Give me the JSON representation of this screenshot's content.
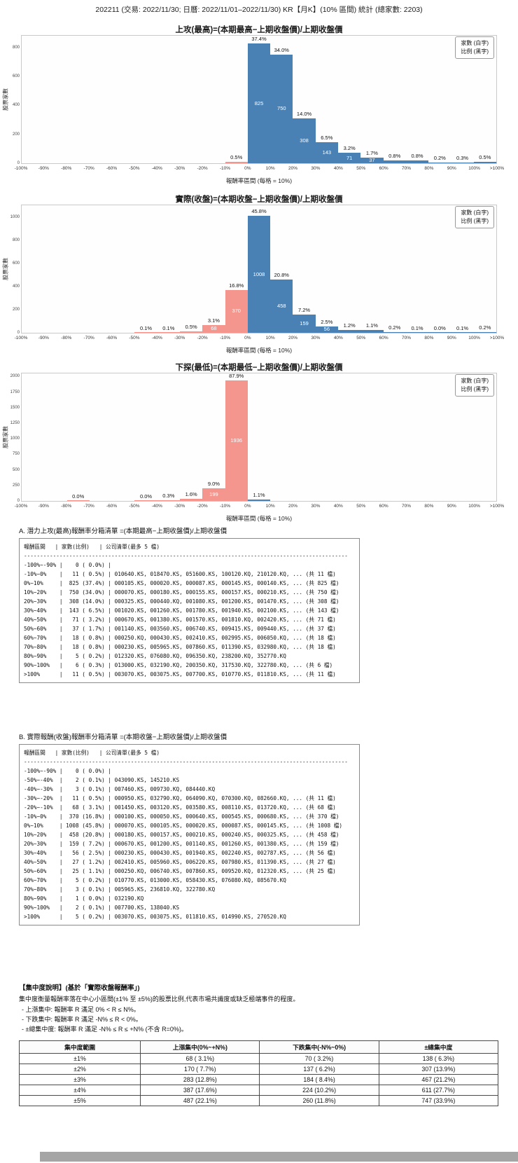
{
  "page_title": "202211 (交易: 2022/11/30; 日曆: 2022/11/01–2022/11/30) KR【月K】(10% 區間) 統計 (總家數: 2203)",
  "axis": {
    "x_label": "報酬率區間 (每格 = 10%)",
    "y_label": "股票家數",
    "x_ticks": [
      "-100%",
      "-90%",
      "-80%",
      "-70%",
      "-60%",
      "-50%",
      "-40%",
      "-30%",
      "-20%",
      "-10%",
      "0%",
      "10%",
      "20%",
      "30%",
      "40%",
      "50%",
      "60%",
      "70%",
      "80%",
      "90%",
      "100%",
      ">100%"
    ]
  },
  "legend": {
    "line1": "家數 (白字)",
    "line2": "比例 (黑字)"
  },
  "colors": {
    "positive_bar": "#4a81b4",
    "negative_bar": "#f5968e",
    "count_text": "#ffffff",
    "pct_text": "#111111"
  },
  "chart_data": [
    {
      "type": "bar",
      "title": "上攻(最高)=(本期最高−上期收盤價)/上期收盤價",
      "xlabel": "報酬率區間 (每格 = 10%)",
      "ylabel": "股票家數",
      "ylim": [
        0,
        880
      ],
      "y_ticks": [
        0,
        200,
        400,
        600,
        800
      ],
      "bins": [
        {
          "i": 9,
          "range": "-10%~0%",
          "count": 11,
          "pct": "0.5%",
          "show_count": false
        },
        {
          "i": 10,
          "range": "0%~10%",
          "count": 825,
          "pct": "37.4%",
          "show_count": true
        },
        {
          "i": 11,
          "range": "10%~20%",
          "count": 750,
          "pct": "34.0%",
          "show_count": true
        },
        {
          "i": 12,
          "range": "20%~30%",
          "count": 308,
          "pct": "14.0%",
          "show_count": true
        },
        {
          "i": 13,
          "range": "30%~40%",
          "count": 143,
          "pct": "6.5%",
          "show_count": true
        },
        {
          "i": 14,
          "range": "40%~50%",
          "count": 71,
          "pct": "3.2%",
          "show_count": true
        },
        {
          "i": 15,
          "range": "50%~60%",
          "count": 37,
          "pct": "1.7%",
          "show_count": true
        },
        {
          "i": 16,
          "range": "60%~70%",
          "count": 18,
          "pct": "0.8%",
          "show_count": false
        },
        {
          "i": 17,
          "range": "70%~80%",
          "count": 18,
          "pct": "0.8%",
          "show_count": false
        },
        {
          "i": 18,
          "range": "80%~90%",
          "count": 5,
          "pct": "0.2%",
          "show_count": false
        },
        {
          "i": 19,
          "range": "90%~100%",
          "count": 6,
          "pct": "0.3%",
          "show_count": false
        },
        {
          "i": 20,
          "range": ">100%",
          "count": 11,
          "pct": "0.5%",
          "show_count": false
        }
      ]
    },
    {
      "type": "bar",
      "title": "實際(收盤)=(本期收盤−上期收盤價)/上期收盤價",
      "xlabel": "報酬率區間 (每格 = 10%)",
      "ylabel": "股票家數",
      "ylim": [
        0,
        1100
      ],
      "y_ticks": [
        0,
        200,
        400,
        600,
        800,
        1000
      ],
      "bins": [
        {
          "i": 5,
          "range": "-50%~-40%",
          "count": 2,
          "pct": "0.1%",
          "show_count": false
        },
        {
          "i": 6,
          "range": "-40%~-30%",
          "count": 3,
          "pct": "0.1%",
          "show_count": false
        },
        {
          "i": 7,
          "range": "-30%~-20%",
          "count": 11,
          "pct": "0.5%",
          "show_count": false
        },
        {
          "i": 8,
          "range": "-20%~-10%",
          "count": 68,
          "pct": "3.1%",
          "show_count": true
        },
        {
          "i": 9,
          "range": "-10%~0%",
          "count": 370,
          "pct": "16.8%",
          "show_count": true
        },
        {
          "i": 10,
          "range": "0%~10%",
          "count": 1008,
          "pct": "45.8%",
          "show_count": true
        },
        {
          "i": 11,
          "range": "10%~20%",
          "count": 458,
          "pct": "20.8%",
          "show_count": true
        },
        {
          "i": 12,
          "range": "20%~30%",
          "count": 159,
          "pct": "7.2%",
          "show_count": true
        },
        {
          "i": 13,
          "range": "30%~40%",
          "count": 56,
          "pct": "2.5%",
          "show_count": true
        },
        {
          "i": 14,
          "range": "40%~50%",
          "count": 27,
          "pct": "1.2%",
          "show_count": false
        },
        {
          "i": 15,
          "range": "50%~60%",
          "count": 25,
          "pct": "1.1%",
          "show_count": false
        },
        {
          "i": 16,
          "range": "60%~70%",
          "count": 5,
          "pct": "0.2%",
          "show_count": false
        },
        {
          "i": 17,
          "range": "70%~80%",
          "count": 3,
          "pct": "0.1%",
          "show_count": false
        },
        {
          "i": 18,
          "range": "80%~90%",
          "count": 1,
          "pct": "0.0%",
          "show_count": false
        },
        {
          "i": 19,
          "range": "90%~100%",
          "count": 2,
          "pct": "0.1%",
          "show_count": false
        },
        {
          "i": 20,
          "range": ">100%",
          "count": 5,
          "pct": "0.2%",
          "show_count": false
        }
      ]
    },
    {
      "type": "bar",
      "title": "下探(最低)=(本期最低−上期收盤價)/上期收盤價",
      "xlabel": "報酬率區間 (每格 = 10%)",
      "ylabel": "股票家數",
      "ylim": [
        0,
        2050
      ],
      "y_ticks": [
        0,
        250,
        500,
        750,
        1000,
        1250,
        1500,
        1750,
        2000
      ],
      "bins": [
        {
          "i": 2,
          "range": "-80%~-70%",
          "count": 1,
          "pct": "0.0%",
          "show_count": false
        },
        {
          "i": 5,
          "range": "-50%~-40%",
          "count": 1,
          "pct": "0.0%",
          "show_count": false
        },
        {
          "i": 6,
          "range": "-40%~-30%",
          "count": 7,
          "pct": "0.3%",
          "show_count": false
        },
        {
          "i": 7,
          "range": "-30%~-20%",
          "count": 35,
          "pct": "1.6%",
          "show_count": false
        },
        {
          "i": 8,
          "range": "-20%~-10%",
          "count": 199,
          "pct": "9.0%",
          "show_count": true
        },
        {
          "i": 9,
          "range": "-10%~0%",
          "count": 1936,
          "pct": "87.9%",
          "show_count": true
        },
        {
          "i": 10,
          "range": "0%~10%",
          "count": 24,
          "pct": "1.1%",
          "show_count": false
        }
      ]
    }
  ],
  "section_a": {
    "title": "A. 潛力上攻(最高)報酬率分箱清單 =(本期最高−上期收盤價)/上期收盤價",
    "header": "報酬區間   | 家數(比例)   | 公司清單(最多 5 檔)",
    "separator": "----------------------------------------------------------------------------------------------------",
    "rows": [
      "-100%~-90% |    0 ( 0.0%) |",
      "-10%~0%    |   11 ( 0.5%) | 010640.KS, 018470.KS, 051600.KS, 100120.KQ, 210120.KQ, ... (共 11 檔)",
      "0%~10%     |  825 (37.4%) | 000105.KS, 000020.KS, 000087.KS, 000145.KS, 000140.KS, ... (共 825 檔)",
      "10%~20%    |  750 (34.0%) | 000070.KS, 000180.KS, 000155.KS, 000157.KS, 000210.KS, ... (共 750 檔)",
      "20%~30%    |  308 (14.0%) | 000325.KS, 000440.KQ, 001080.KS, 001200.KS, 001470.KS, ... (共 308 檔)",
      "30%~40%    |  143 ( 6.5%) | 001020.KS, 001260.KS, 001780.KS, 001940.KS, 002100.KS, ... (共 143 檔)",
      "40%~50%    |   71 ( 3.2%) | 000670.KS, 001380.KS, 001570.KS, 001810.KQ, 002420.KS, ... (共 71 檔)",
      "50%~60%    |   37 ( 1.7%) | 001140.KS, 003560.KS, 006740.KS, 009415.KS, 009440.KS, ... (共 37 檔)",
      "60%~70%    |   18 ( 0.8%) | 000250.KQ, 000430.KS, 002410.KS, 002995.KS, 006050.KQ, ... (共 18 檔)",
      "70%~80%    |   18 ( 0.8%) | 000230.KS, 005965.KS, 007860.KS, 011390.KS, 032980.KQ, ... (共 18 檔)",
      "80%~90%    |    5 ( 0.2%) | 012320.KS, 076080.KQ, 096350.KQ, 238200.KQ, 352770.KQ",
      "90%~100%   |    6 ( 0.3%) | 013000.KS, 032190.KQ, 200350.KQ, 317530.KQ, 322780.KQ, ... (共 6 檔)",
      ">100%      |   11 ( 0.5%) | 003070.KS, 003075.KS, 007700.KS, 010770.KS, 011810.KS, ... (共 11 檔)"
    ]
  },
  "section_b": {
    "title": "B. 實際報酬(收盤)報酬率分箱清單 =(本期收盤−上期收盤價)/上期收盤價",
    "header": "報酬區間   | 家數(比例)   | 公司清單(最多 5 檔)",
    "separator": "----------------------------------------------------------------------------------------------------",
    "rows": [
      "-100%~-90% |    0 ( 0.0%) |",
      "-50%~-40%  |    2 ( 0.1%) | 043090.KS, 145210.KS",
      "-40%~-30%  |    3 ( 0.1%) | 007460.KS, 009730.KQ, 084440.KQ",
      "-30%~-20%  |   11 ( 0.5%) | 000950.KS, 032790.KQ, 064090.KQ, 070300.KQ, 082660.KQ, ... (共 11 檔)",
      "-20%~-10%  |   68 ( 3.1%) | 001450.KS, 003120.KS, 003580.KS, 008110.KS, 013720.KQ, ... (共 68 檔)",
      "-10%~0%    |  370 (16.8%) | 000100.KS, 000050.KS, 000640.KS, 000545.KS, 000680.KS, ... (共 370 檔)",
      "0%~10%     | 1008 (45.8%) | 000070.KS, 000105.KS, 000020.KS, 000087.KS, 000145.KS, ... (共 1008 檔)",
      "10%~20%    |  458 (20.8%) | 000180.KS, 000157.KS, 000210.KS, 000240.KS, 000325.KS, ... (共 458 檔)",
      "20%~30%    |  159 ( 7.2%) | 000670.KS, 001200.KS, 001140.KS, 001260.KS, 001380.KS, ... (共 159 檔)",
      "30%~40%    |   56 ( 2.5%) | 000230.KS, 000430.KS, 001940.KS, 002240.KS, 002787.KS, ... (共 56 檔)",
      "40%~50%    |   27 ( 1.2%) | 002410.KS, 005960.KS, 006220.KS, 007980.KS, 011390.KS, ... (共 27 檔)",
      "50%~60%    |   25 ( 1.1%) | 000250.KQ, 006740.KS, 007860.KS, 009520.KQ, 012320.KS, ... (共 25 檔)",
      "60%~70%    |    5 ( 0.2%) | 010770.KS, 013000.KS, 058430.KS, 076080.KQ, 085670.KQ",
      "70%~80%    |    3 ( 0.1%) | 005965.KS, 236810.KQ, 322780.KQ",
      "80%~90%    |    1 ( 0.0%) | 032190.KQ",
      "90%~100%   |    2 ( 0.1%) | 007700.KS, 138040.KS",
      ">100%      |    5 ( 0.2%) | 003070.KS, 003075.KS, 011810.KS, 014990.KS, 270520.KQ"
    ]
  },
  "concentration": {
    "heading": "【集中度說明】(基於「實際收盤報酬率」)",
    "desc": "集中度衡量報酬率落在中心小區間(±1% 至 ±5%)的股票比例,代表市場共識度或缺乏極端事件的程度。",
    "bullets": [
      "- 上漲集中: 報酬率 R 滿足 0% < R ≤ N%。",
      "- 下跌集中: 報酬率 R 滿足 -N% ≤ R < 0%。",
      "- ±總集中度: 報酬率 R 滿足 -N% ≤ R ≤ +N% (不含 R=0%)。"
    ],
    "table": {
      "headers": [
        "集中度範圍",
        "上漲集中(0%~+N%)",
        "下跌集中(-N%~0%)",
        "±總集中度"
      ],
      "rows": [
        [
          "±1%",
          "68 ( 3.1%)",
          "70 ( 3.2%)",
          "138 ( 6.3%)"
        ],
        [
          "±2%",
          "170 ( 7.7%)",
          "137 ( 6.2%)",
          "307 (13.9%)"
        ],
        [
          "±3%",
          "283 (12.8%)",
          "184 ( 8.4%)",
          "467 (21.2%)"
        ],
        [
          "±4%",
          "387 (17.6%)",
          "224 (10.2%)",
          "611 (27.7%)"
        ],
        [
          "±5%",
          "487 (22.1%)",
          "260 (11.8%)",
          "747 (33.9%)"
        ]
      ]
    }
  }
}
